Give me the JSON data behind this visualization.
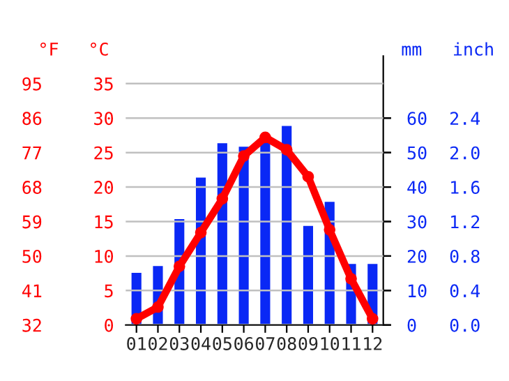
{
  "chart_data": [
    {
      "type": "line",
      "categories": [
        "01",
        "02",
        "03",
        "04",
        "05",
        "06",
        "07",
        "08",
        "09",
        "10",
        "11",
        "12"
      ],
      "series": [
        {
          "axis": "y",
          "color": "#ff0000",
          "marker": "circle",
          "line_style": "solid",
          "values": [
            0.9,
            2.6,
            8.5,
            13.4,
            18.3,
            24.5,
            27.2,
            25.4,
            21.5,
            13.8,
            6.7,
            0.9
          ]
        }
      ],
      "ylabel": "°C",
      "ylim": [
        0,
        39
      ],
      "yticks": [
        0,
        5,
        10,
        15,
        20,
        25,
        30,
        35
      ],
      "y3label": "°F",
      "y3lim": [
        32,
        102.2
      ],
      "y3ticks": [
        32,
        41,
        50,
        59,
        68,
        77,
        86,
        95
      ],
      "grid": "y",
      "legend": false
    },
    {
      "type": "bar",
      "categories": [
        "01",
        "02",
        "03",
        "04",
        "05",
        "06",
        "07",
        "08",
        "09",
        "10",
        "11",
        "12"
      ],
      "series": [
        {
          "axis": "y2",
          "color": "#0a28f5",
          "values": [
            15.4,
            17.4,
            31,
            43,
            53,
            52,
            54,
            58,
            29,
            36,
            18,
            18
          ]
        }
      ],
      "y2label": "mm",
      "y2lim": [
        0,
        78
      ],
      "y2ticks": [
        0,
        10,
        20,
        30,
        40,
        50,
        60
      ],
      "y3label": "inch",
      "y3lim": [
        0,
        3.12
      ],
      "y3ticks": [
        {
          "value": 0,
          "label": "0.0"
        },
        {
          "value": 0.4,
          "label": "0.4"
        },
        {
          "value": 0.8,
          "label": "0.8"
        },
        {
          "value": 1.2,
          "label": "1.2"
        },
        {
          "value": 1.6,
          "label": "1.6"
        },
        {
          "value": 2.0,
          "label": "2.0"
        },
        {
          "value": 2.4,
          "label": "2.4"
        }
      ],
      "tick_labels": "y",
      "legend": false
    }
  ]
}
